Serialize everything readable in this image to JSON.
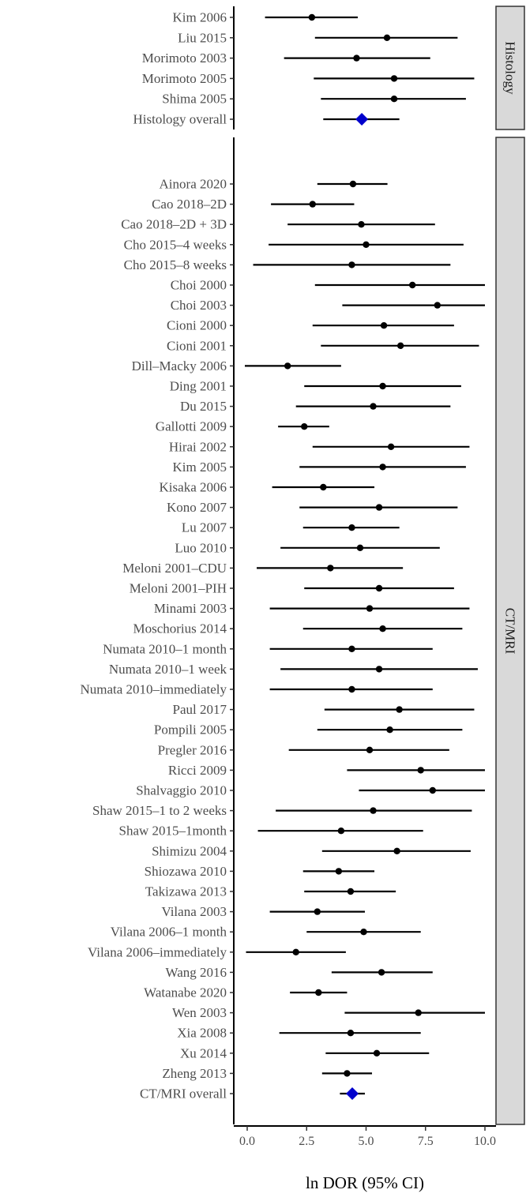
{
  "chart_data": {
    "type": "forest",
    "xlabel": "ln DOR (95% CI)",
    "xlim": [
      -0.6,
      10.5
    ],
    "xticks": [
      0.0,
      2.5,
      5.0,
      7.5,
      10.0
    ],
    "xtick_labels": [
      "0.0",
      "2.5",
      "5.0",
      "7.5",
      "10.0"
    ],
    "grid": false,
    "colors": {
      "point": "#000000",
      "overall": "#0000cc",
      "strip_fill": "#d9d9d9",
      "strip_border": "#333333"
    },
    "panels": [
      {
        "strip": "Histology",
        "rows": [
          {
            "label": "Kim 2006",
            "est": 2.72,
            "lo": 0.75,
            "hi": 4.65
          },
          {
            "label": "Liu 2015",
            "est": 5.88,
            "lo": 2.85,
            "hi": 8.85
          },
          {
            "label": "Morimoto 2003",
            "est": 4.6,
            "lo": 1.55,
            "hi": 7.7
          },
          {
            "label": "Morimoto 2005",
            "est": 6.18,
            "lo": 2.8,
            "hi": 9.55
          },
          {
            "label": "Shima 2005",
            "est": 6.18,
            "lo": 3.1,
            "hi": 9.2
          },
          {
            "label": "Histology overall",
            "est": 4.82,
            "lo": 3.2,
            "hi": 6.4,
            "overall": true
          }
        ]
      },
      {
        "strip": "CT/MRI",
        "rows": [
          {
            "label": "Ainora 2020",
            "est": 4.45,
            "lo": 2.95,
            "hi": 5.9
          },
          {
            "label": "Cao 2018–2D",
            "est": 2.75,
            "lo": 1.0,
            "hi": 4.5
          },
          {
            "label": "Cao 2018–2D + 3D",
            "est": 4.8,
            "lo": 1.7,
            "hi": 7.9
          },
          {
            "label": "Cho 2015–4 weeks",
            "est": 5.0,
            "lo": 0.9,
            "hi": 9.1
          },
          {
            "label": "Cho 2015–8 weeks",
            "est": 4.4,
            "lo": 0.25,
            "hi": 8.55
          },
          {
            "label": "Choi 2000",
            "est": 6.95,
            "lo": 2.85,
            "hi": 10.0
          },
          {
            "label": "Choi 2003",
            "est": 8.0,
            "lo": 4.0,
            "hi": 10.0
          },
          {
            "label": "Cioni 2000",
            "est": 5.75,
            "lo": 2.75,
            "hi": 8.7
          },
          {
            "label": "Cioni 2001",
            "est": 6.45,
            "lo": 3.1,
            "hi": 9.75
          },
          {
            "label": "Dill–Macky 2006",
            "est": 1.7,
            "lo": -0.1,
            "hi": 3.95
          },
          {
            "label": "Ding 2001",
            "est": 5.7,
            "lo": 2.4,
            "hi": 9.0
          },
          {
            "label": "Du 2015",
            "est": 5.3,
            "lo": 2.05,
            "hi": 8.55
          },
          {
            "label": "Gallotti 2009",
            "est": 2.4,
            "lo": 1.3,
            "hi": 3.45
          },
          {
            "label": "Hirai 2002",
            "est": 6.05,
            "lo": 2.75,
            "hi": 9.35
          },
          {
            "label": "Kim 2005",
            "est": 5.7,
            "lo": 2.2,
            "hi": 9.2
          },
          {
            "label": "Kisaka 2006",
            "est": 3.2,
            "lo": 1.05,
            "hi": 5.35
          },
          {
            "label": "Kono 2007",
            "est": 5.55,
            "lo": 2.2,
            "hi": 8.85
          },
          {
            "label": "Lu 2007",
            "est": 4.4,
            "lo": 2.35,
            "hi": 6.4
          },
          {
            "label": "Luo 2010",
            "est": 4.75,
            "lo": 1.4,
            "hi": 8.1
          },
          {
            "label": "Meloni 2001–CDU",
            "est": 3.5,
            "lo": 0.4,
            "hi": 6.55
          },
          {
            "label": "Meloni 2001–PIH",
            "est": 5.55,
            "lo": 2.4,
            "hi": 8.7
          },
          {
            "label": "Minami 2003",
            "est": 5.15,
            "lo": 0.95,
            "hi": 9.35
          },
          {
            "label": "Moschorius 2014",
            "est": 5.7,
            "lo": 2.35,
            "hi": 9.05
          },
          {
            "label": "Numata 2010–1 month",
            "est": 4.4,
            "lo": 0.95,
            "hi": 7.8
          },
          {
            "label": "Numata 2010–1 week",
            "est": 5.55,
            "lo": 1.4,
            "hi": 9.7
          },
          {
            "label": "Numata 2010–immediately",
            "est": 4.4,
            "lo": 0.95,
            "hi": 7.8
          },
          {
            "label": "Paul 2017",
            "est": 6.4,
            "lo": 3.25,
            "hi": 9.55
          },
          {
            "label": "Pompili 2005",
            "est": 6.0,
            "lo": 2.95,
            "hi": 9.05
          },
          {
            "label": "Pregler 2016",
            "est": 5.15,
            "lo": 1.75,
            "hi": 8.5
          },
          {
            "label": "Ricci 2009",
            "est": 7.3,
            "lo": 4.2,
            "hi": 10.0
          },
          {
            "label": "Shalvaggio 2010",
            "est": 7.8,
            "lo": 4.7,
            "hi": 10.0
          },
          {
            "label": "Shaw 2015–1 to 2 weeks",
            "est": 5.3,
            "lo": 1.2,
            "hi": 9.45
          },
          {
            "label": "Shaw 2015–1month",
            "est": 3.95,
            "lo": 0.45,
            "hi": 7.4
          },
          {
            "label": "Shimizu 2004",
            "est": 6.3,
            "lo": 3.15,
            "hi": 9.4
          },
          {
            "label": "Shiozawa 2010",
            "est": 3.85,
            "lo": 2.35,
            "hi": 5.35
          },
          {
            "label": "Takizawa 2013",
            "est": 4.35,
            "lo": 2.4,
            "hi": 6.25
          },
          {
            "label": "Vilana 2003",
            "est": 2.95,
            "lo": 0.95,
            "hi": 4.95
          },
          {
            "label": "Vilana 2006–1 month",
            "est": 4.9,
            "lo": 2.5,
            "hi": 7.3
          },
          {
            "label": "Vilana 2006–immediately",
            "est": 2.05,
            "lo": -0.05,
            "hi": 4.15
          },
          {
            "label": "Wang 2016",
            "est": 5.65,
            "lo": 3.55,
            "hi": 7.8
          },
          {
            "label": "Watanabe 2020",
            "est": 3.0,
            "lo": 1.8,
            "hi": 4.2
          },
          {
            "label": "Wen 2003",
            "est": 7.2,
            "lo": 4.1,
            "hi": 10.0
          },
          {
            "label": "Xia 2008",
            "est": 4.35,
            "lo": 1.35,
            "hi": 7.3
          },
          {
            "label": "Xu 2014",
            "est": 5.45,
            "lo": 3.3,
            "hi": 7.65
          },
          {
            "label": "Zheng 2013",
            "est": 4.2,
            "lo": 3.15,
            "hi": 5.25
          },
          {
            "label": "CT/MRI overall",
            "est": 4.42,
            "lo": 3.9,
            "hi": 4.95,
            "overall": true
          }
        ]
      }
    ]
  }
}
